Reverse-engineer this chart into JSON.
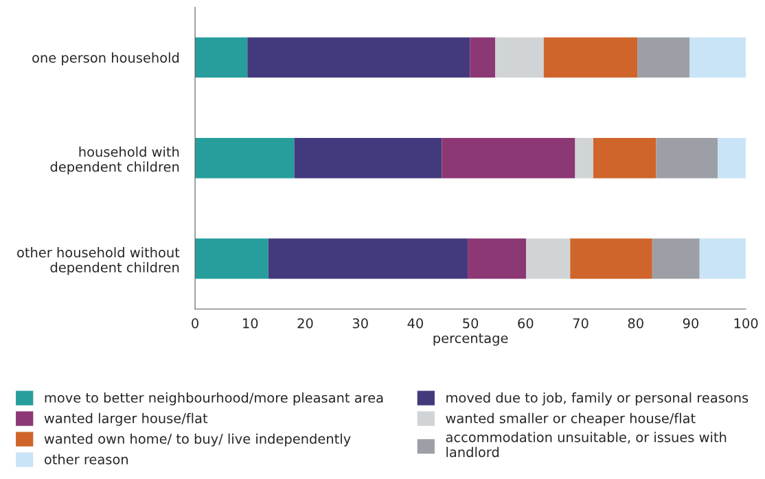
{
  "chart_data": {
    "type": "bar",
    "orientation": "horizontal",
    "stacked": true,
    "xlabel": "percentage",
    "categories": [
      "one person household",
      "household with\ndependent children",
      "other household without\ndependent children"
    ],
    "xlim": [
      0,
      100
    ],
    "xticks": [
      0,
      10,
      20,
      30,
      40,
      50,
      60,
      70,
      80,
      90,
      100
    ],
    "grid": false,
    "legend": "bottom",
    "series": [
      {
        "name": "move to better neighbourhood/more pleasant area",
        "color": "#279e9c",
        "values": [
          9.5,
          18.0,
          13.3
        ]
      },
      {
        "name": "moved due to job, family or personal reasons",
        "color": "#433a7e",
        "values": [
          40.4,
          26.8,
          36.2
        ]
      },
      {
        "name": "wanted larger house/flat",
        "color": "#8c3874",
        "values": [
          4.6,
          24.2,
          10.6
        ]
      },
      {
        "name": "wanted smaller or cheaper house/flat",
        "color": "#d0d4d6",
        "values": [
          8.8,
          3.3,
          8.0
        ]
      },
      {
        "name": "wanted own home/ to buy/ live independently",
        "color": "#cf652b",
        "values": [
          17.0,
          11.4,
          14.9
        ]
      },
      {
        "name": "accommodation unsuitable, or issues with\nlandlord",
        "color": "#9ca0a6",
        "values": [
          9.5,
          11.2,
          8.6
        ]
      },
      {
        "name": "other reason",
        "color": "#c9e4f6",
        "values": [
          10.2,
          5.1,
          8.4
        ]
      }
    ]
  }
}
